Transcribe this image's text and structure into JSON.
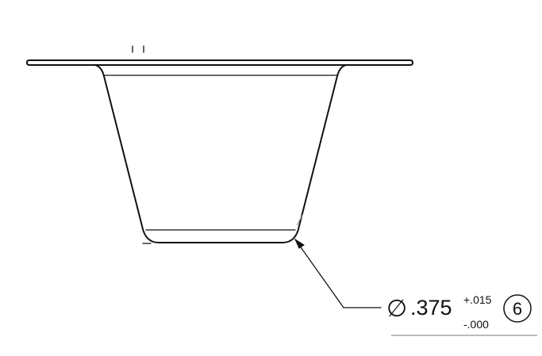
{
  "callout": {
    "diameter_symbol": "∅",
    "nominal_value": ".375",
    "tolerance_upper": "+.015",
    "tolerance_lower": "-.000",
    "balloon_number": "6"
  }
}
